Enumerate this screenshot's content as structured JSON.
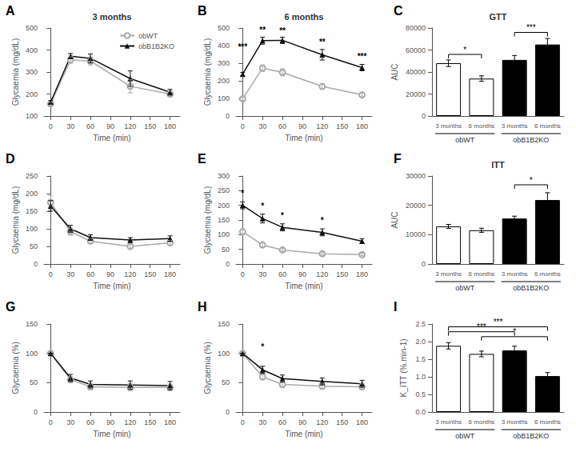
{
  "chart_data": [
    {
      "type": "line",
      "panel_label": "A",
      "title": "3 months",
      "xlabel": "Time (min)",
      "ylabel": "Glycaemia (mg/dL)",
      "x": [
        0,
        30,
        60,
        120,
        180
      ],
      "series": [
        {
          "name": "obWT",
          "color": "#aaaaaa",
          "marker": "emptyCircle",
          "values": [
            155,
            355,
            350,
            235,
            200
          ],
          "errors": [
            8,
            15,
            18,
            30,
            12
          ]
        },
        {
          "name": "obB1B2KO",
          "color": "#111111",
          "marker": "triangle",
          "values": [
            163,
            372,
            362,
            270,
            208
          ],
          "errors": [
            7,
            12,
            20,
            35,
            13
          ]
        }
      ],
      "xlim": [
        -10,
        195
      ],
      "xticks": [
        0,
        30,
        60,
        90,
        120,
        150,
        180
      ],
      "ylim": [
        100,
        500
      ],
      "yticks": [
        100,
        200,
        300,
        400,
        500
      ],
      "grid": false,
      "legend": "upper right"
    },
    {
      "type": "line",
      "panel_label": "B",
      "title": "6 months",
      "xlabel": "Time (min)",
      "ylabel": "Glycaemia (mg/dL)",
      "x": [
        0,
        30,
        60,
        120,
        180
      ],
      "series": [
        {
          "name": "obWT",
          "color": "#aaaaaa",
          "marker": "emptyCircle",
          "values": [
            97,
            272,
            248,
            168,
            120
          ],
          "errors": [
            8,
            18,
            20,
            15,
            12
          ]
        },
        {
          "name": "obB1B2KO",
          "color": "#111111",
          "marker": "triangle",
          "values": [
            238,
            428,
            430,
            348,
            275
          ],
          "errors": [
            10,
            20,
            18,
            30,
            18
          ]
        }
      ],
      "xlim": [
        -10,
        195
      ],
      "xticks": [
        0,
        30,
        60,
        90,
        120,
        150,
        180
      ],
      "ylim": [
        0,
        500
      ],
      "yticks": [
        0,
        100,
        200,
        300,
        400,
        500
      ],
      "annotations": [
        {
          "x": 0,
          "y": 370,
          "text": "***"
        },
        {
          "x": 30,
          "y": 465,
          "text": "**"
        },
        {
          "x": 60,
          "y": 460,
          "text": "**"
        },
        {
          "x": 120,
          "y": 400,
          "text": "**"
        },
        {
          "x": 180,
          "y": 315,
          "text": "***"
        }
      ],
      "grid": false
    },
    {
      "type": "bar",
      "panel_label": "C",
      "title": "GTT",
      "ylabel": "AUC",
      "categories": [
        "3 months",
        "6 months",
        "3 months",
        "6 months"
      ],
      "values": [
        48000,
        34000,
        51000,
        65000
      ],
      "errors": [
        3000,
        2500,
        4000,
        5500
      ],
      "colors": [
        "white",
        "white",
        "black",
        "black"
      ],
      "group_labels": [
        "obWT",
        "obB1B2KO"
      ],
      "ylim": [
        0,
        80000
      ],
      "yticks": [
        0,
        20000,
        40000,
        60000,
        80000
      ],
      "annotations": [
        {
          "xi1": 0,
          "xi2": 1,
          "y": 56000,
          "text": "*"
        },
        {
          "xi1": 2,
          "xi2": 3,
          "y": 76000,
          "text": "***"
        }
      ],
      "grid": false
    },
    {
      "type": "line",
      "panel_label": "D",
      "xlabel": "Time (min)",
      "ylabel": "Glycaemia (mg/dL)",
      "x": [
        0,
        30,
        60,
        120,
        180
      ],
      "series": [
        {
          "name": "obWT",
          "color": "#aaaaaa",
          "marker": "emptyCircle",
          "values": [
            175,
            92,
            65,
            50,
            60
          ],
          "errors": [
            20,
            10,
            7,
            5,
            7
          ]
        },
        {
          "name": "obB1B2KO",
          "color": "#111111",
          "marker": "triangle",
          "values": [
            165,
            100,
            75,
            68,
            72
          ],
          "errors": [
            15,
            10,
            8,
            7,
            8
          ]
        }
      ],
      "xlim": [
        -10,
        195
      ],
      "xticks": [
        0,
        30,
        60,
        90,
        120,
        150,
        180
      ],
      "ylim": [
        0,
        250
      ],
      "yticks": [
        0,
        50,
        100,
        150,
        200,
        250
      ],
      "grid": false
    },
    {
      "type": "line",
      "panel_label": "E",
      "xlabel": "Time (min)",
      "ylabel": "Glycaemia (mg/dL)",
      "x": [
        0,
        30,
        60,
        120,
        180
      ],
      "series": [
        {
          "name": "obWT",
          "color": "#aaaaaa",
          "marker": "emptyCircle",
          "values": [
            110,
            65,
            48,
            35,
            32
          ],
          "errors": [
            8,
            7,
            5,
            4,
            4
          ]
        },
        {
          "name": "obB1B2KO",
          "color": "#111111",
          "marker": "triangle",
          "values": [
            200,
            155,
            125,
            108,
            78
          ],
          "errors": [
            12,
            15,
            12,
            12,
            8
          ]
        }
      ],
      "xlim": [
        -10,
        195
      ],
      "xticks": [
        0,
        30,
        60,
        90,
        120,
        150,
        180
      ],
      "ylim": [
        0,
        300
      ],
      "yticks": [
        0,
        50,
        100,
        150,
        200,
        250,
        300
      ],
      "annotations": [
        {
          "x": 0,
          "y": 228,
          "text": "*"
        },
        {
          "x": 30,
          "y": 185,
          "text": "*"
        },
        {
          "x": 60,
          "y": 152,
          "text": "*"
        },
        {
          "x": 120,
          "y": 135,
          "text": "*"
        }
      ],
      "grid": false
    },
    {
      "type": "bar",
      "panel_label": "F",
      "title": "ITT",
      "ylabel": "AUC",
      "categories": [
        "3 months",
        "6 months",
        "3 months",
        "6 months"
      ],
      "values": [
        12800,
        11500,
        15500,
        21800
      ],
      "errors": [
        700,
        700,
        800,
        2500
      ],
      "colors": [
        "white",
        "white",
        "black",
        "black"
      ],
      "group_labels": [
        "obWT",
        "obB1B2KO"
      ],
      "ylim": [
        0,
        30000
      ],
      "yticks": [
        0,
        10000,
        20000,
        30000
      ],
      "annotations": [
        {
          "xi1": 2,
          "xi2": 3,
          "y": 27000,
          "text": "*"
        }
      ],
      "grid": false
    },
    {
      "type": "line",
      "panel_label": "G",
      "xlabel": "Time (min)",
      "ylabel": "Glycaemia (%)",
      "x": [
        0,
        30,
        60,
        120,
        180
      ],
      "series": [
        {
          "name": "obWT",
          "color": "#aaaaaa",
          "marker": "emptyCircle",
          "values": [
            100,
            55,
            43,
            42,
            42
          ],
          "errors": [
            0,
            5,
            5,
            6,
            6
          ]
        },
        {
          "name": "obB1B2KO",
          "color": "#111111",
          "marker": "triangle",
          "values": [
            100,
            58,
            47,
            46,
            45
          ],
          "errors": [
            0,
            6,
            6,
            7,
            7
          ]
        }
      ],
      "xlim": [
        -10,
        195
      ],
      "xticks": [
        0,
        30,
        60,
        90,
        120,
        150,
        180
      ],
      "ylim": [
        0,
        150
      ],
      "yticks": [
        0,
        50,
        100,
        150
      ],
      "grid": false
    },
    {
      "type": "line",
      "panel_label": "H",
      "xlabel": "Time (min)",
      "ylabel": "Glycaemia (%)",
      "x": [
        0,
        30,
        60,
        120,
        180
      ],
      "series": [
        {
          "name": "obWT",
          "color": "#aaaaaa",
          "marker": "emptyCircle",
          "values": [
            100,
            60,
            47,
            44,
            43
          ],
          "errors": [
            0,
            5,
            5,
            5,
            5
          ]
        },
        {
          "name": "obB1B2KO",
          "color": "#111111",
          "marker": "triangle",
          "values": [
            100,
            72,
            57,
            52,
            48
          ],
          "errors": [
            0,
            6,
            6,
            6,
            6
          ]
        }
      ],
      "xlim": [
        -10,
        195
      ],
      "xticks": [
        0,
        30,
        60,
        90,
        120,
        150,
        180
      ],
      "ylim": [
        0,
        150
      ],
      "yticks": [
        0,
        50,
        100,
        150
      ],
      "annotations": [
        {
          "x": 30,
          "y": 105,
          "text": "*"
        }
      ],
      "grid": false
    },
    {
      "type": "bar",
      "panel_label": "I",
      "ylabel": "K_ITT (%.min-1)",
      "categories": [
        "3 months",
        "6 months",
        "3 months",
        "6 months"
      ],
      "values": [
        1.88,
        1.65,
        1.75,
        1.02
      ],
      "errors": [
        0.09,
        0.08,
        0.12,
        0.1
      ],
      "colors": [
        "white",
        "white",
        "black",
        "black"
      ],
      "group_labels": [
        "obWT",
        "obB1B2KO"
      ],
      "ylim": [
        0.0,
        2.5
      ],
      "yticks": [
        {
          "value": 0.0,
          "label": "0.0"
        },
        0.5,
        {
          "value": 1.0,
          "label": "1.0"
        },
        1.5,
        {
          "value": 2.0,
          "label": "2.0"
        },
        2.5
      ],
      "annotations": [
        {
          "xi1": 0,
          "xi2": 3,
          "y": 2.42,
          "text": "***"
        },
        {
          "xi1": 0,
          "xi2": 2,
          "y": 2.28,
          "text": "***"
        },
        {
          "xi1": 1,
          "xi2": 3,
          "y": 2.14,
          "text": "*"
        }
      ],
      "grid": false
    }
  ]
}
